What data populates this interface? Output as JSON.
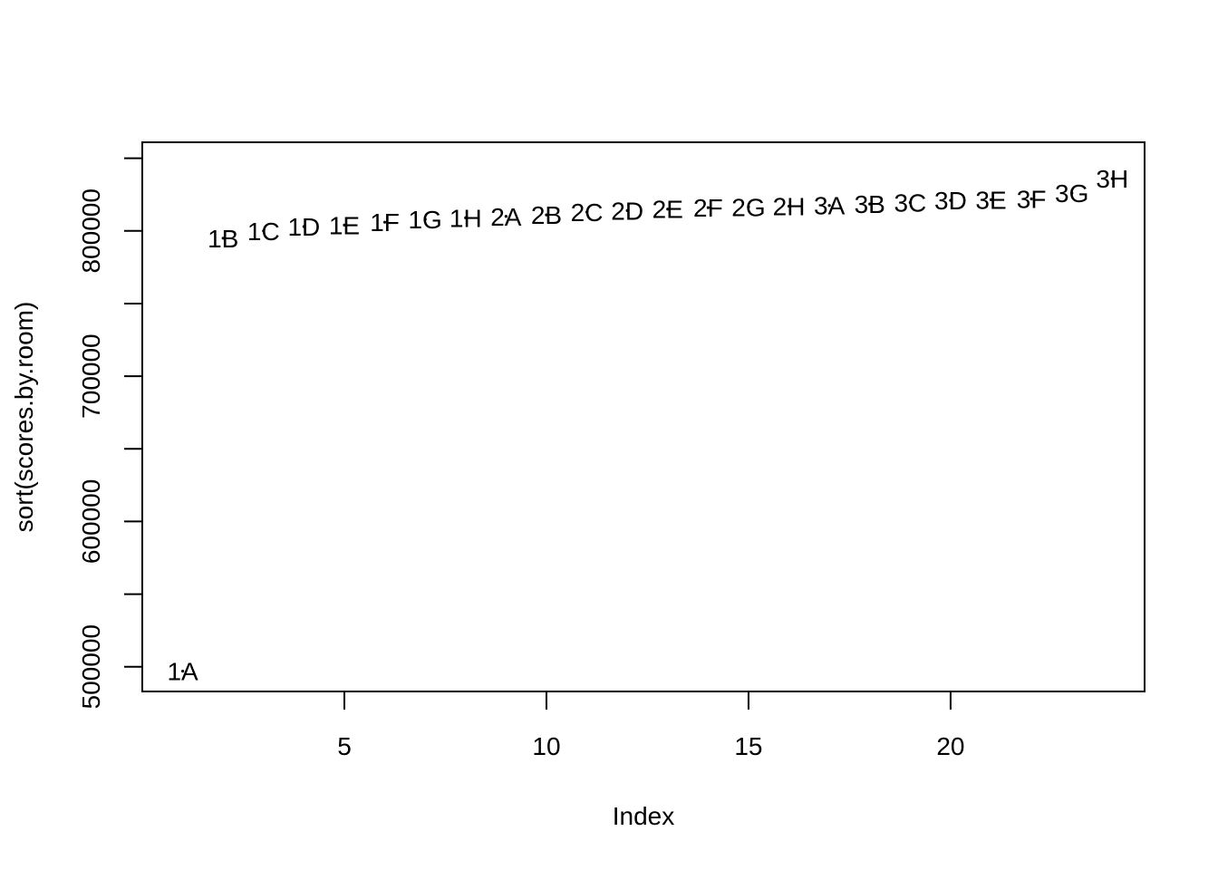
{
  "chart_data": {
    "type": "scatter",
    "title": "",
    "xlabel": "Index",
    "ylabel": "sort(scores.by.room)",
    "xlim": [
      0,
      24.8
    ],
    "ylim": [
      483000,
      861000
    ],
    "x_ticks": [
      5,
      10,
      15,
      20
    ],
    "x_tick_labels": [
      "5",
      "10",
      "15",
      "20"
    ],
    "y_ticks": [
      500000,
      550000,
      600000,
      650000,
      700000,
      750000,
      800000,
      850000
    ],
    "y_tick_labels": [
      "500000",
      "",
      "600000",
      "",
      "700000",
      "",
      "800000",
      ""
    ],
    "grid": false,
    "legend": "none",
    "point_color": "#000000",
    "points": [
      {
        "x": 1,
        "y": 497000,
        "label": "1A"
      },
      {
        "x": 2,
        "y": 795000,
        "label": "1B"
      },
      {
        "x": 3,
        "y": 800000,
        "label": "1C"
      },
      {
        "x": 4,
        "y": 803000,
        "label": "1D"
      },
      {
        "x": 5,
        "y": 804000,
        "label": "1E"
      },
      {
        "x": 6,
        "y": 806000,
        "label": "1F"
      },
      {
        "x": 7,
        "y": 808000,
        "label": "1G"
      },
      {
        "x": 8,
        "y": 809000,
        "label": "1H"
      },
      {
        "x": 9,
        "y": 810000,
        "label": "2A"
      },
      {
        "x": 10,
        "y": 811000,
        "label": "2B"
      },
      {
        "x": 11,
        "y": 813000,
        "label": "2C"
      },
      {
        "x": 12,
        "y": 814000,
        "label": "2D"
      },
      {
        "x": 13,
        "y": 815000,
        "label": "2E"
      },
      {
        "x": 14,
        "y": 816000,
        "label": "2F"
      },
      {
        "x": 15,
        "y": 816500,
        "label": "2G"
      },
      {
        "x": 16,
        "y": 817000,
        "label": "2H"
      },
      {
        "x": 17,
        "y": 817500,
        "label": "3A"
      },
      {
        "x": 18,
        "y": 818500,
        "label": "3B"
      },
      {
        "x": 19,
        "y": 819500,
        "label": "3C"
      },
      {
        "x": 20,
        "y": 821000,
        "label": "3D"
      },
      {
        "x": 21,
        "y": 821500,
        "label": "3E"
      },
      {
        "x": 22,
        "y": 822000,
        "label": "3F"
      },
      {
        "x": 23,
        "y": 826000,
        "label": "3G"
      },
      {
        "x": 24,
        "y": 836000,
        "label": "3H"
      }
    ]
  }
}
